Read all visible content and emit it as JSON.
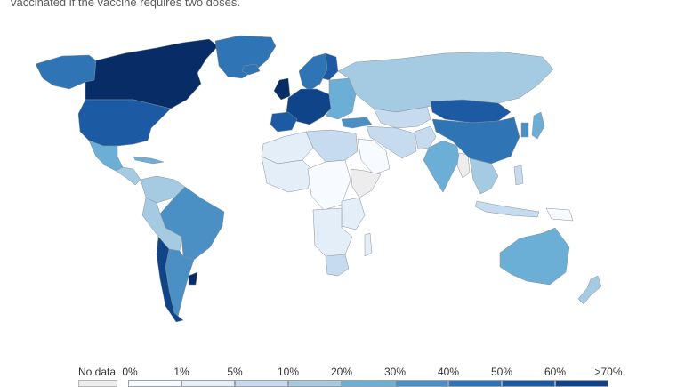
{
  "caption": "vaccinated if the vaccine requires two doses.",
  "legend": {
    "no_data_label": "No data",
    "no_data_color": "#ededed",
    "bins": [
      {
        "label": "0%",
        "color": "#f7fbff"
      },
      {
        "label": "1%",
        "color": "#e3eef8"
      },
      {
        "label": "5%",
        "color": "#c6dbef"
      },
      {
        "label": "10%",
        "color": "#a5cbe3"
      },
      {
        "label": "20%",
        "color": "#6baed6"
      },
      {
        "label": "30%",
        "color": "#4a90c4"
      },
      {
        "label": "40%",
        "color": "#2f74b5"
      },
      {
        "label": "50%",
        "color": "#1c5ba3"
      },
      {
        "label": "60%",
        "color": "#0f4489"
      },
      {
        "label": ">70%",
        "color": "#082d66"
      }
    ]
  },
  "regions": [
    {
      "name": "alaska",
      "level": 6
    },
    {
      "name": "canada",
      "level": 9
    },
    {
      "name": "greenland",
      "level": 6
    },
    {
      "name": "usa",
      "level": 7
    },
    {
      "name": "mexico",
      "level": 4
    },
    {
      "name": "central-america",
      "level": 3
    },
    {
      "name": "cuba",
      "level": 4
    },
    {
      "name": "colombia-venezuela",
      "level": 3
    },
    {
      "name": "brazil",
      "level": 5
    },
    {
      "name": "peru-bolivia",
      "level": 3
    },
    {
      "name": "argentina",
      "level": 5
    },
    {
      "name": "chile",
      "level": 8
    },
    {
      "name": "uruguay",
      "level": 9
    },
    {
      "name": "iceland",
      "level": 6
    },
    {
      "name": "uk-ireland",
      "level": 9
    },
    {
      "name": "scandinavia",
      "level": 6
    },
    {
      "name": "finland",
      "level": 7
    },
    {
      "name": "western-europe",
      "level": 8
    },
    {
      "name": "iberia",
      "level": 7
    },
    {
      "name": "eastern-europe",
      "level": 4
    },
    {
      "name": "russia",
      "level": 3
    },
    {
      "name": "turkey",
      "level": 5
    },
    {
      "name": "kazakhstan",
      "level": 2
    },
    {
      "name": "middle-east",
      "level": 2
    },
    {
      "name": "saudi-arabia",
      "level": 0
    },
    {
      "name": "north-africa-west",
      "level": 1
    },
    {
      "name": "north-africa-east",
      "level": 2
    },
    {
      "name": "west-africa",
      "level": 1
    },
    {
      "name": "central-africa",
      "level": 0
    },
    {
      "name": "east-africa",
      "level": 1
    },
    {
      "name": "horn-of-africa",
      "level": -1
    },
    {
      "name": "southern-africa",
      "level": 1
    },
    {
      "name": "south-africa",
      "level": 2
    },
    {
      "name": "madagascar",
      "level": 1
    },
    {
      "name": "india",
      "level": 4
    },
    {
      "name": "pakistan-afghanistan",
      "level": 2
    },
    {
      "name": "myanmar",
      "level": -1
    },
    {
      "name": "mongolia-china-north",
      "level": 7
    },
    {
      "name": "china",
      "level": 6
    },
    {
      "name": "korea",
      "level": 5
    },
    {
      "name": "japan",
      "level": 4
    },
    {
      "name": "southeast-asia",
      "level": 3
    },
    {
      "name": "indonesia",
      "level": 2
    },
    {
      "name": "philippines",
      "level": 2
    },
    {
      "name": "papua-new-guinea",
      "level": 0
    },
    {
      "name": "australia",
      "level": 4
    },
    {
      "name": "new-zealand",
      "level": 3
    }
  ]
}
